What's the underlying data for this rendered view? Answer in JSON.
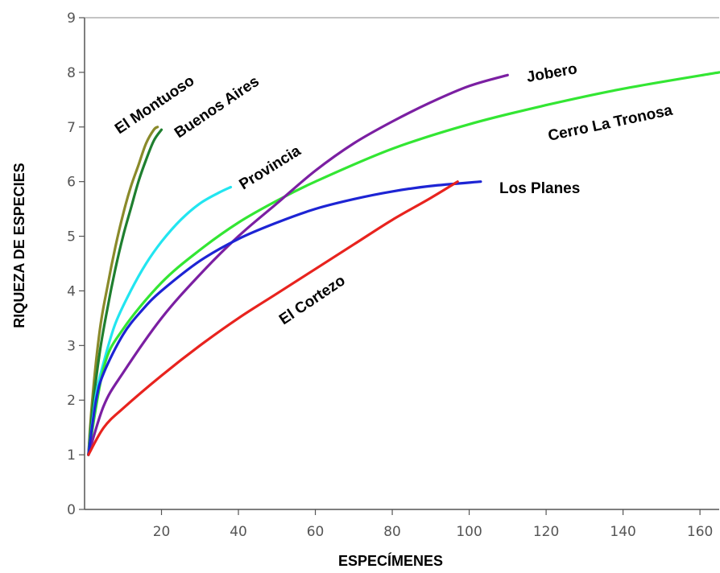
{
  "chart_data": {
    "type": "line",
    "title": "",
    "xlabel": "ESPECÍMENES",
    "ylabel": "RIQUEZA DE ESPECIES",
    "xlim": [
      0,
      165
    ],
    "ylim": [
      0,
      9
    ],
    "xticks": [
      20,
      40,
      60,
      80,
      100,
      120,
      140,
      160
    ],
    "yticks": [
      0,
      1,
      2,
      3,
      4,
      5,
      6,
      7,
      8,
      9
    ],
    "grid": false,
    "legend": "none",
    "series": [
      {
        "name": "El Montuoso",
        "color": "#8a8a2a",
        "x": [
          1,
          2,
          4,
          6,
          8,
          10,
          12,
          14,
          16,
          18,
          19
        ],
        "y": [
          1,
          2.0,
          3.3,
          4.1,
          4.8,
          5.4,
          5.9,
          6.3,
          6.7,
          6.95,
          7
        ]
      },
      {
        "name": "Buenos Aires",
        "color": "#1f7f2f",
        "x": [
          1,
          2,
          4,
          6,
          8,
          10,
          12,
          14,
          16,
          18,
          20
        ],
        "y": [
          1,
          1.8,
          2.9,
          3.7,
          4.4,
          5.0,
          5.5,
          6.0,
          6.4,
          6.75,
          6.95
        ]
      },
      {
        "name": "Provincia",
        "color": "#22e5f0",
        "x": [
          1,
          3,
          5,
          8,
          12,
          16,
          20,
          25,
          30,
          35,
          38
        ],
        "y": [
          1,
          2.1,
          2.7,
          3.4,
          4.0,
          4.5,
          4.9,
          5.3,
          5.6,
          5.8,
          5.9
        ]
      },
      {
        "name": "Cerro La Tronosa",
        "color": "#33e633",
        "x": [
          1,
          5,
          10,
          20,
          30,
          40,
          50,
          60,
          80,
          100,
          120,
          140,
          165
        ],
        "y": [
          1,
          2.6,
          3.3,
          4.15,
          4.75,
          5.25,
          5.65,
          6.0,
          6.6,
          7.05,
          7.4,
          7.7,
          8.0
        ]
      },
      {
        "name": "Jobero",
        "color": "#7b1fa2",
        "x": [
          1,
          5,
          10,
          20,
          30,
          40,
          50,
          60,
          70,
          80,
          90,
          100,
          110
        ],
        "y": [
          1,
          1.9,
          2.5,
          3.5,
          4.3,
          5.0,
          5.6,
          6.2,
          6.7,
          7.1,
          7.45,
          7.75,
          7.95
        ]
      },
      {
        "name": "Los Planes",
        "color": "#1d24d4",
        "x": [
          1,
          3,
          5,
          10,
          15,
          20,
          30,
          40,
          50,
          60,
          70,
          80,
          90,
          103
        ],
        "y": [
          1,
          2.0,
          2.5,
          3.2,
          3.65,
          4.0,
          4.55,
          4.95,
          5.25,
          5.5,
          5.68,
          5.82,
          5.92,
          6.0
        ]
      },
      {
        "name": "El Cortezo",
        "color": "#e8231e",
        "x": [
          1,
          5,
          10,
          20,
          30,
          40,
          50,
          60,
          70,
          80,
          90,
          97
        ],
        "y": [
          1,
          1.5,
          1.85,
          2.45,
          3.0,
          3.5,
          3.95,
          4.4,
          4.85,
          5.3,
          5.7,
          6.0
        ]
      }
    ],
    "annotations": [
      {
        "text": "El Montuoso",
        "series": "El Montuoso"
      },
      {
        "text": "Buenos Aires",
        "series": "Buenos Aires"
      },
      {
        "text": "Provincia",
        "series": "Provincia"
      },
      {
        "text": "Jobero",
        "series": "Jobero"
      },
      {
        "text": "Cerro La Tronosa",
        "series": "Cerro La Tronosa"
      },
      {
        "text": "Los Planes",
        "series": "Los Planes"
      },
      {
        "text": "El Cortezo",
        "series": "El Cortezo"
      }
    ]
  }
}
